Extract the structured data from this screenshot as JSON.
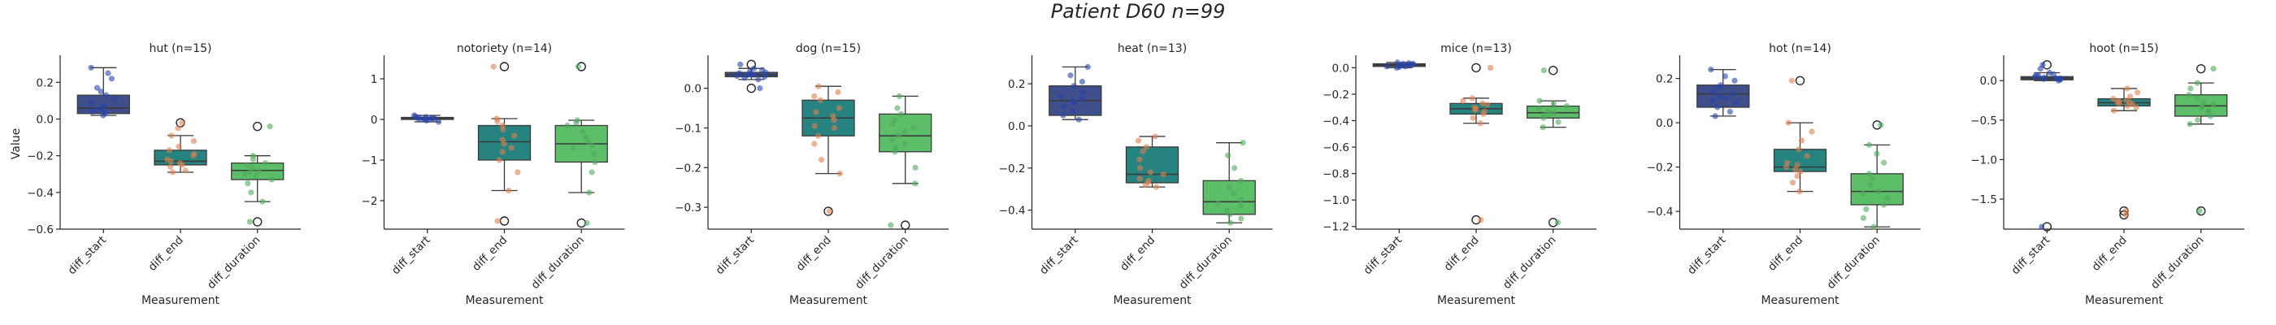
{
  "figure": {
    "suptitle": "Patient D60 n=99"
  },
  "chart_data": [
    {
      "type": "box",
      "title": "hut (n=15)",
      "xlabel": "Measurement",
      "ylabel": "Value",
      "categories": [
        "diff_start",
        "diff_end",
        "diff_duration"
      ],
      "ylim": [
        -0.6,
        0.33
      ],
      "yticks": [
        -0.6,
        -0.4,
        -0.2,
        0.0,
        0.2
      ],
      "ytick_labels": [
        "−0.6",
        "−0.4",
        "−0.2",
        "0.0",
        "0.2"
      ],
      "boxes": [
        {
          "q1": 0.03,
          "median": 0.06,
          "q3": 0.13,
          "whislo": 0.02,
          "whishi": 0.28,
          "fliers": [],
          "points": [
            0.02,
            0.03,
            0.04,
            0.05,
            0.06,
            0.07,
            0.09,
            0.11,
            0.13,
            0.15,
            0.17,
            0.22,
            0.25,
            0.28,
            0.04
          ]
        },
        {
          "q1": -0.25,
          "median": -0.23,
          "q3": -0.17,
          "whislo": -0.29,
          "whishi": -0.09,
          "fliers": [
            -0.02
          ],
          "points": [
            -0.29,
            -0.28,
            -0.26,
            -0.25,
            -0.24,
            -0.23,
            -0.22,
            -0.2,
            -0.19,
            -0.17,
            -0.15,
            -0.12,
            -0.09,
            -0.05,
            -0.02
          ]
        },
        {
          "q1": -0.33,
          "median": -0.28,
          "q3": -0.24,
          "whislo": -0.45,
          "whishi": -0.2,
          "fliers": [
            -0.04,
            -0.56
          ],
          "points": [
            -0.45,
            -0.4,
            -0.35,
            -0.33,
            -0.31,
            -0.29,
            -0.28,
            -0.27,
            -0.25,
            -0.24,
            -0.22,
            -0.2,
            -0.3,
            -0.04,
            -0.56
          ]
        }
      ]
    },
    {
      "type": "box",
      "title": "notoriety (n=14)",
      "xlabel": "Measurement",
      "categories": [
        "diff_start",
        "diff_end",
        "diff_duration"
      ],
      "ylim": [
        -2.7,
        1.5
      ],
      "yticks": [
        -2,
        -1,
        0,
        1
      ],
      "ytick_labels": [
        "−2",
        "−1",
        "0",
        "1"
      ],
      "boxes": [
        {
          "q1": 0.0,
          "median": 0.02,
          "q3": 0.05,
          "whislo": -0.06,
          "whishi": 0.1,
          "fliers": [],
          "points": [
            -0.06,
            -0.03,
            0.0,
            0.01,
            0.02,
            0.02,
            0.03,
            0.04,
            0.05,
            0.06,
            0.08,
            0.1,
            0.0,
            0.03
          ]
        },
        {
          "q1": -1.0,
          "median": -0.55,
          "q3": -0.15,
          "whislo": -1.75,
          "whishi": 0.02,
          "fliers": [
            1.3,
            -2.5
          ],
          "points": [
            -1.75,
            -1.3,
            -1.0,
            -0.8,
            -0.6,
            -0.5,
            -0.4,
            -0.25,
            -0.15,
            -0.05,
            0.02,
            -0.7,
            1.3,
            -2.5
          ]
        },
        {
          "q1": -1.05,
          "median": -0.6,
          "q3": -0.15,
          "whislo": -1.8,
          "whishi": -0.02,
          "fliers": [
            1.3,
            -2.55
          ],
          "points": [
            -1.8,
            -1.3,
            -1.05,
            -0.85,
            -0.65,
            -0.55,
            -0.45,
            -0.3,
            -0.15,
            -0.08,
            -0.02,
            -0.7,
            1.3,
            -2.55
          ]
        }
      ]
    },
    {
      "type": "box",
      "title": "dog (n=15)",
      "xlabel": "Measurement",
      "categories": [
        "diff_start",
        "diff_end",
        "diff_duration"
      ],
      "ylim": [
        -0.355,
        0.075
      ],
      "yticks": [
        -0.3,
        -0.2,
        -0.1,
        0.0
      ],
      "ytick_labels": [
        "−0.3",
        "−0.2",
        "−0.1",
        "0.0"
      ],
      "boxes": [
        {
          "q1": 0.029,
          "median": 0.034,
          "q3": 0.04,
          "whislo": 0.022,
          "whishi": 0.05,
          "fliers": [
            0.06,
            0.0
          ],
          "points": [
            0.022,
            0.026,
            0.029,
            0.031,
            0.033,
            0.034,
            0.036,
            0.038,
            0.04,
            0.043,
            0.046,
            0.05,
            0.035,
            0.06,
            0.0
          ]
        },
        {
          "q1": -0.12,
          "median": -0.075,
          "q3": -0.03,
          "whislo": -0.215,
          "whishi": 0.005,
          "fliers": [
            -0.31
          ],
          "points": [
            -0.215,
            -0.18,
            -0.14,
            -0.12,
            -0.1,
            -0.08,
            -0.07,
            -0.05,
            -0.03,
            -0.01,
            0.005,
            -0.095,
            -0.06,
            -0.02,
            -0.31
          ]
        },
        {
          "q1": -0.16,
          "median": -0.12,
          "q3": -0.065,
          "whislo": -0.24,
          "whishi": -0.02,
          "fliers": [
            -0.345
          ],
          "points": [
            -0.24,
            -0.2,
            -0.16,
            -0.14,
            -0.13,
            -0.12,
            -0.11,
            -0.09,
            -0.065,
            -0.05,
            -0.02,
            -0.1,
            -0.08,
            -0.15,
            -0.345
          ]
        }
      ]
    },
    {
      "type": "box",
      "title": "heat (n=13)",
      "xlabel": "Measurement",
      "categories": [
        "diff_start",
        "diff_end",
        "diff_duration"
      ],
      "ylim": [
        -0.49,
        0.32
      ],
      "yticks": [
        -0.4,
        -0.2,
        0.0,
        0.2
      ],
      "ytick_labels": [
        "−0.4",
        "−0.2",
        "0.0",
        "0.2"
      ],
      "boxes": [
        {
          "q1": 0.05,
          "median": 0.12,
          "q3": 0.19,
          "whislo": 0.03,
          "whishi": 0.28,
          "fliers": [],
          "points": [
            0.03,
            0.05,
            0.07,
            0.09,
            0.11,
            0.12,
            0.14,
            0.16,
            0.19,
            0.21,
            0.24,
            0.28,
            0.13
          ]
        },
        {
          "q1": -0.27,
          "median": -0.23,
          "q3": -0.1,
          "whislo": -0.29,
          "whishi": -0.05,
          "fliers": [],
          "points": [
            -0.29,
            -0.28,
            -0.27,
            -0.25,
            -0.23,
            -0.2,
            -0.16,
            -0.12,
            -0.1,
            -0.07,
            -0.05,
            -0.22,
            -0.26
          ]
        },
        {
          "q1": -0.42,
          "median": -0.36,
          "q3": -0.26,
          "whislo": -0.46,
          "whishi": -0.08,
          "fliers": [],
          "points": [
            -0.46,
            -0.44,
            -0.42,
            -0.4,
            -0.37,
            -0.35,
            -0.32,
            -0.29,
            -0.26,
            -0.2,
            -0.14,
            -0.08,
            -0.38
          ]
        }
      ]
    },
    {
      "type": "box",
      "title": "mice (n=13)",
      "xlabel": "Measurement",
      "categories": [
        "diff_start",
        "diff_end",
        "diff_duration"
      ],
      "ylim": [
        -1.22,
        0.07
      ],
      "yticks": [
        -1.2,
        -1.0,
        -0.8,
        -0.6,
        -0.4,
        -0.2,
        0.0
      ],
      "ytick_labels": [
        "−1.2",
        "−1.0",
        "−0.8",
        "−0.6",
        "−0.4",
        "−0.2",
        "0.0"
      ],
      "boxes": [
        {
          "q1": 0.01,
          "median": 0.02,
          "q3": 0.03,
          "whislo": 0.0,
          "whishi": 0.04,
          "fliers": [],
          "points": [
            0.0,
            0.005,
            0.01,
            0.015,
            0.02,
            0.02,
            0.025,
            0.03,
            0.035,
            0.04,
            0.01,
            0.03,
            0.02
          ]
        },
        {
          "q1": -0.35,
          "median": -0.31,
          "q3": -0.27,
          "whislo": -0.42,
          "whishi": -0.23,
          "fliers": [
            0.0,
            -1.15
          ],
          "points": [
            -0.42,
            -0.38,
            -0.35,
            -0.33,
            -0.31,
            -0.3,
            -0.28,
            -0.27,
            -0.25,
            -0.23,
            -0.32,
            0.0,
            -1.15
          ]
        },
        {
          "q1": -0.38,
          "median": -0.34,
          "q3": -0.29,
          "whislo": -0.45,
          "whishi": -0.25,
          "fliers": [
            -0.02,
            -1.17
          ],
          "points": [
            -0.45,
            -0.41,
            -0.38,
            -0.36,
            -0.34,
            -0.33,
            -0.31,
            -0.29,
            -0.27,
            -0.25,
            -0.35,
            -0.02,
            -1.17
          ]
        }
      ]
    },
    {
      "type": "box",
      "title": "hot (n=14)",
      "xlabel": "Measurement",
      "categories": [
        "diff_start",
        "diff_end",
        "diff_duration"
      ],
      "ylim": [
        -0.48,
        0.29
      ],
      "yticks": [
        -0.4,
        -0.2,
        0.0,
        0.2
      ],
      "ytick_labels": [
        "−0.4",
        "−0.2",
        "0.0",
        "0.2"
      ],
      "boxes": [
        {
          "q1": 0.07,
          "median": 0.13,
          "q3": 0.17,
          "whislo": 0.03,
          "whishi": 0.24,
          "fliers": [],
          "points": [
            0.03,
            0.05,
            0.07,
            0.09,
            0.11,
            0.12,
            0.13,
            0.14,
            0.16,
            0.17,
            0.19,
            0.21,
            0.24,
            0.1
          ]
        },
        {
          "q1": -0.22,
          "median": -0.2,
          "q3": -0.12,
          "whislo": -0.31,
          "whishi": 0.0,
          "fliers": [
            0.19
          ],
          "points": [
            -0.31,
            -0.27,
            -0.24,
            -0.22,
            -0.21,
            -0.2,
            -0.18,
            -0.15,
            -0.12,
            -0.08,
            -0.04,
            0.0,
            -0.19,
            0.19
          ]
        },
        {
          "q1": -0.37,
          "median": -0.31,
          "q3": -0.23,
          "whislo": -0.47,
          "whishi": -0.1,
          "fliers": [
            -0.01
          ],
          "points": [
            -0.47,
            -0.43,
            -0.39,
            -0.37,
            -0.34,
            -0.32,
            -0.31,
            -0.28,
            -0.25,
            -0.23,
            -0.18,
            -0.14,
            -0.1,
            -0.01
          ]
        }
      ]
    },
    {
      "type": "box",
      "title": "hoot (n=15)",
      "xlabel": "Measurement",
      "categories": [
        "diff_start",
        "diff_end",
        "diff_duration"
      ],
      "ylim": [
        -1.88,
        0.28
      ],
      "yticks": [
        -1.5,
        -1.0,
        -0.5,
        0.0
      ],
      "ytick_labels": [
        "−1.5",
        "−1.0",
        "−0.5",
        "0.0"
      ],
      "boxes": [
        {
          "q1": 0.01,
          "median": 0.03,
          "q3": 0.05,
          "whislo": 0.0,
          "whishi": 0.1,
          "fliers": [
            0.2,
            -1.85
          ],
          "points": [
            0.0,
            0.01,
            0.02,
            0.03,
            0.03,
            0.04,
            0.05,
            0.06,
            0.07,
            0.08,
            0.1,
            0.02,
            0.15,
            0.2,
            -1.85
          ]
        },
        {
          "q1": -0.32,
          "median": -0.28,
          "q3": -0.23,
          "whislo": -0.38,
          "whishi": -0.1,
          "fliers": [
            -1.65,
            -1.7
          ],
          "points": [
            -0.38,
            -0.34,
            -0.32,
            -0.3,
            -0.28,
            -0.27,
            -0.25,
            -0.23,
            -0.2,
            -0.15,
            -0.1,
            -0.29,
            -0.26,
            -1.65,
            -1.7
          ]
        },
        {
          "q1": -0.45,
          "median": -0.32,
          "q3": -0.18,
          "whislo": -0.55,
          "whishi": -0.03,
          "fliers": [
            0.15,
            -1.65
          ],
          "points": [
            -0.55,
            -0.5,
            -0.45,
            -0.4,
            -0.35,
            -0.32,
            -0.28,
            -0.22,
            -0.18,
            -0.1,
            -0.03,
            -0.3,
            -0.38,
            0.15,
            -1.65
          ]
        }
      ]
    }
  ],
  "style": {
    "box_colors": [
      "#3e4f8c",
      "#26837f",
      "#5dbe6a"
    ],
    "point_colors": [
      "#2a44a8",
      "#dd7f4f",
      "#4faa5c"
    ]
  }
}
